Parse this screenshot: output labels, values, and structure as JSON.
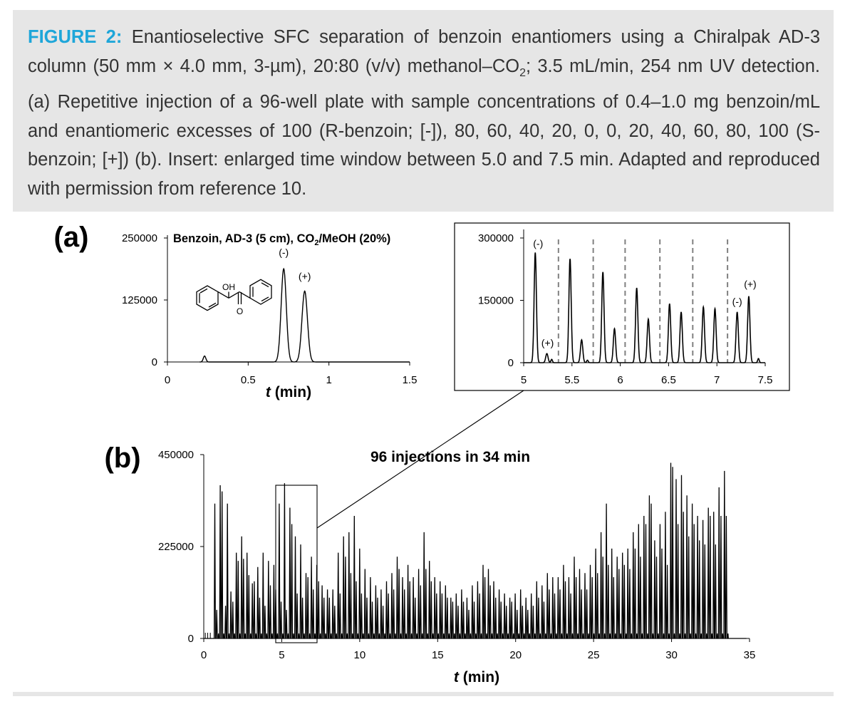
{
  "caption": {
    "label": "FIGURE 2:",
    "text_1": " Enantioselective SFC separation of benzoin enantiomers using a Chiralpak AD-3 column (50 mm × 4.0 mm, 3-µm), 20:80 (v/v) methanol–CO",
    "text_2": "; 3.5 mL/min, 254 nm UV detection. (a) Repetitive injection of a 96-well plate with sample concentrations of 0.4–1.0 mg benzoin/mL and enantiomeric excesses of 100 (R-benzoin; [-]), 80, 60, 40, 20, 0, 0, 20, 40, 60, 80, 100 (S-benzoin; [+]) (b). Insert: enlarged time window between 5.0 and 7.5 min. Adapted and reproduced with permission from reference 10."
  },
  "chem": {
    "co2_sub": "2",
    "oh": "OH",
    "o": "O"
  },
  "colors": {
    "accent": "#1ea6d9",
    "caption_bg": "#e6e6e6",
    "line": "#000000",
    "dashed": "#808080"
  },
  "chart_data": [
    {
      "id": "a",
      "type": "line",
      "panel_label": "(a)",
      "title": "Benzoin, AD-3 (5 cm), CO/MeOH (20%)",
      "title_parts": [
        "Benzoin, AD-3 (5 cm), CO",
        "/MeOH (20%)"
      ],
      "xlabel": "t (min)",
      "xlabel_parts": [
        "t",
        " (min)"
      ],
      "ylabel": "",
      "xlim": [
        0,
        1.5
      ],
      "ylim": [
        0,
        250000
      ],
      "xticks": [
        0,
        0.5,
        1,
        1.5
      ],
      "xtick_labels": [
        "0",
        "0.5",
        "1",
        "1.5"
      ],
      "yticks": [
        0,
        125000,
        250000
      ],
      "ytick_labels": [
        "0",
        "125000",
        "250000"
      ],
      "peaks": [
        {
          "t": 0.23,
          "h": 12000,
          "w": 0.008
        },
        {
          "t": 0.72,
          "h": 188000,
          "w": 0.016,
          "label": "(-)"
        },
        {
          "t": 0.85,
          "h": 143000,
          "w": 0.017,
          "label": "(+)"
        }
      ]
    },
    {
      "id": "inset",
      "type": "line",
      "xlabel": "",
      "xlim": [
        5,
        7.5
      ],
      "ylim": [
        0,
        300000
      ],
      "xticks": [
        5,
        5.5,
        6,
        6.5,
        7,
        7.5
      ],
      "xtick_labels": [
        "5",
        "5.5",
        "6",
        "6.5",
        "7",
        "7.5"
      ],
      "yticks": [
        0,
        150000,
        300000
      ],
      "ytick_labels": [
        "0",
        "150000",
        "300000"
      ],
      "dividers": [
        5.36,
        5.72,
        6.05,
        6.41,
        6.75,
        7.11
      ],
      "peaks": [
        {
          "t": 5.12,
          "h": 265000,
          "w": 0.012,
          "label": "(-)"
        },
        {
          "t": 5.24,
          "h": 22000,
          "w": 0.012,
          "label": "(+)"
        },
        {
          "t": 5.29,
          "h": 8000,
          "w": 0.008
        },
        {
          "t": 5.48,
          "h": 250000,
          "w": 0.012
        },
        {
          "t": 5.6,
          "h": 55000,
          "w": 0.012
        },
        {
          "t": 5.66,
          "h": 6000,
          "w": 0.008
        },
        {
          "t": 5.82,
          "h": 218000,
          "w": 0.012
        },
        {
          "t": 5.94,
          "h": 82000,
          "w": 0.012
        },
        {
          "t": 6.17,
          "h": 180000,
          "w": 0.012
        },
        {
          "t": 6.29,
          "h": 105000,
          "w": 0.012
        },
        {
          "t": 6.51,
          "h": 142000,
          "w": 0.012
        },
        {
          "t": 6.63,
          "h": 122000,
          "w": 0.012
        },
        {
          "t": 6.86,
          "h": 134000,
          "w": 0.012
        },
        {
          "t": 6.98,
          "h": 130000,
          "w": 0.012
        },
        {
          "t": 7.21,
          "h": 122000,
          "w": 0.012,
          "label": "(-)"
        },
        {
          "t": 7.33,
          "h": 160000,
          "w": 0.012,
          "label": "(+)"
        },
        {
          "t": 7.43,
          "h": 10000,
          "w": 0.008
        }
      ]
    },
    {
      "id": "b",
      "type": "line",
      "panel_label": "(b)",
      "annotation": "96 injections in 34 min",
      "xlabel": "t (min)",
      "xlabel_parts": [
        "t",
        " (min)"
      ],
      "xlim": [
        0,
        35
      ],
      "ylim": [
        0,
        450000
      ],
      "xticks": [
        0,
        5,
        10,
        15,
        20,
        25,
        30,
        35
      ],
      "xtick_labels": [
        "0",
        "5",
        "10",
        "15",
        "20",
        "25",
        "30",
        "35"
      ],
      "yticks": [
        0,
        225000,
        450000
      ],
      "ytick_labels": [
        "0",
        "225000",
        "450000"
      ],
      "zoom_window": [
        4.7,
        7.4
      ],
      "injection_start": 0.71,
      "injection_interval": 0.344,
      "enantiomer_offset": 0.12,
      "pairs": [
        [
          330000,
          70000
        ],
        [
          375000,
          360000
        ],
        [
          80000,
          330000
        ],
        [
          115000,
          90000
        ],
        [
          210000,
          190000
        ],
        [
          250000,
          195000
        ],
        [
          210000,
          155000
        ],
        [
          135000,
          140000
        ],
        [
          175000,
          100000
        ],
        [
          210000,
          80000
        ],
        [
          190000,
          130000
        ],
        [
          180000,
          120000
        ],
        [
          330000,
          90000
        ],
        [
          380000,
          70000
        ],
        [
          320000,
          280000
        ],
        [
          250000,
          110000
        ],
        [
          230000,
          100000
        ],
        [
          160000,
          150000
        ],
        [
          200000,
          120000
        ],
        [
          180000,
          140000
        ],
        [
          130000,
          100000
        ],
        [
          120000,
          100000
        ],
        [
          120000,
          80000
        ],
        [
          210000,
          110000
        ],
        [
          250000,
          200000
        ],
        [
          260000,
          160000
        ],
        [
          300000,
          140000
        ],
        [
          220000,
          110000
        ],
        [
          170000,
          100000
        ],
        [
          150000,
          90000
        ],
        [
          130000,
          100000
        ],
        [
          120000,
          80000
        ],
        [
          140000,
          110000
        ],
        [
          160000,
          120000
        ],
        [
          200000,
          170000
        ],
        [
          150000,
          120000
        ],
        [
          180000,
          140000
        ],
        [
          150000,
          100000
        ],
        [
          170000,
          130000
        ],
        [
          260000,
          170000
        ],
        [
          190000,
          140000
        ],
        [
          150000,
          110000
        ],
        [
          140000,
          110000
        ],
        [
          130000,
          100000
        ],
        [
          100000,
          90000
        ],
        [
          110000,
          80000
        ],
        [
          120000,
          90000
        ],
        [
          100000,
          70000
        ],
        [
          130000,
          90000
        ],
        [
          140000,
          110000
        ],
        [
          180000,
          150000
        ],
        [
          170000,
          130000
        ],
        [
          140000,
          100000
        ],
        [
          120000,
          90000
        ],
        [
          110000,
          80000
        ],
        [
          100000,
          90000
        ],
        [
          110000,
          70000
        ],
        [
          120000,
          80000
        ],
        [
          100000,
          70000
        ],
        [
          110000,
          80000
        ],
        [
          140000,
          100000
        ],
        [
          130000,
          90000
        ],
        [
          160000,
          120000
        ],
        [
          150000,
          110000
        ],
        [
          150000,
          120000
        ],
        [
          180000,
          140000
        ],
        [
          150000,
          110000
        ],
        [
          200000,
          150000
        ],
        [
          170000,
          120000
        ],
        [
          160000,
          120000
        ],
        [
          180000,
          150000
        ],
        [
          220000,
          160000
        ],
        [
          260000,
          200000
        ],
        [
          330000,
          180000
        ],
        [
          220000,
          150000
        ],
        [
          200000,
          170000
        ],
        [
          210000,
          180000
        ],
        [
          220000,
          170000
        ],
        [
          260000,
          220000
        ],
        [
          280000,
          200000
        ],
        [
          300000,
          280000
        ],
        [
          350000,
          330000
        ],
        [
          240000,
          200000
        ],
        [
          280000,
          220000
        ],
        [
          310000,
          180000
        ],
        [
          430000,
          420000
        ],
        [
          390000,
          280000
        ],
        [
          400000,
          310000
        ],
        [
          350000,
          250000
        ],
        [
          330000,
          280000
        ],
        [
          300000,
          240000
        ],
        [
          290000,
          230000
        ],
        [
          320000,
          300000
        ],
        [
          310000,
          230000
        ],
        [
          370000,
          300000
        ],
        [
          410000,
          300000
        ]
      ]
    }
  ]
}
